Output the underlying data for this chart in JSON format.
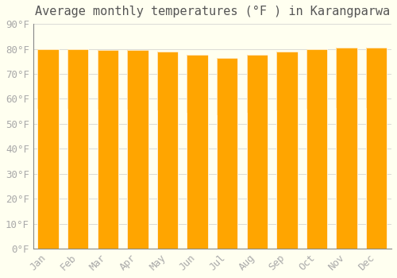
{
  "title": "Average monthly temperatures (°F ) in Karangparwa",
  "months": [
    "Jan",
    "Feb",
    "Mar",
    "Apr",
    "May",
    "Jun",
    "Jul",
    "Aug",
    "Sep",
    "Oct",
    "Nov",
    "Dec"
  ],
  "values": [
    80.0,
    80.0,
    79.5,
    79.5,
    79.0,
    77.5,
    76.5,
    77.5,
    79.0,
    80.0,
    80.5,
    80.5
  ],
  "bar_color_top": "#FFA500",
  "bar_color_bottom": "#FFD080",
  "ylim": [
    0,
    90
  ],
  "yticks": [
    0,
    10,
    20,
    30,
    40,
    50,
    60,
    70,
    80,
    90
  ],
  "ytick_labels": [
    "0°F",
    "10°F",
    "20°F",
    "30°F",
    "40°F",
    "50°F",
    "60°F",
    "70°F",
    "80°F",
    "90°F"
  ],
  "background_color": "#FFFFF0",
  "grid_color": "#CCCCCC",
  "title_fontsize": 11,
  "tick_fontsize": 9,
  "font_color": "#AAAAAA"
}
